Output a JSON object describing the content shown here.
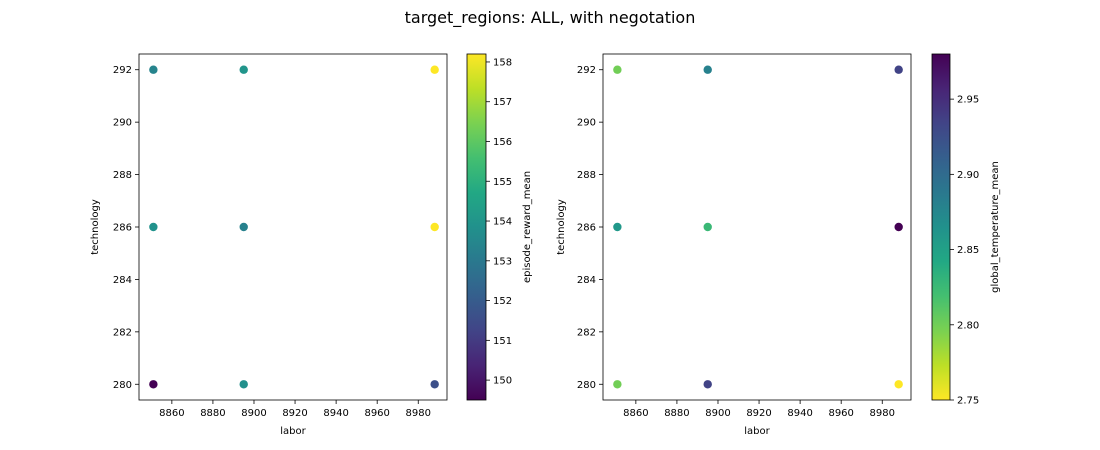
{
  "title": "target_regions: ALL, with negotation",
  "chart_data": [
    {
      "type": "scatter",
      "xlabel": "labor",
      "ylabel": "technology",
      "xlim": [
        8844,
        8994
      ],
      "ylim": [
        279.4,
        292.6
      ],
      "xticks": [
        8860,
        8880,
        8900,
        8920,
        8940,
        8960,
        8980
      ],
      "yticks": [
        280,
        282,
        284,
        286,
        288,
        290,
        292
      ],
      "colormap": "viridis",
      "colorbar": {
        "label": "episode_reward_mean",
        "range": [
          149.5,
          158.2
        ],
        "ticks": [
          150,
          151,
          152,
          153,
          154,
          155,
          156,
          157,
          158
        ]
      },
      "points": [
        {
          "x": 8851,
          "y": 292,
          "c": 153.4
        },
        {
          "x": 8851,
          "y": 286,
          "c": 153.9
        },
        {
          "x": 8851,
          "y": 280,
          "c": 149.5
        },
        {
          "x": 8895,
          "y": 292,
          "c": 154.0
        },
        {
          "x": 8895,
          "y": 286,
          "c": 153.3
        },
        {
          "x": 8895,
          "y": 280,
          "c": 153.8
        },
        {
          "x": 8988,
          "y": 292,
          "c": 158.2
        },
        {
          "x": 8988,
          "y": 286,
          "c": 158.2
        },
        {
          "x": 8988,
          "y": 280,
          "c": 151.6
        }
      ]
    },
    {
      "type": "scatter",
      "xlabel": "labor",
      "ylabel": "technology",
      "xlim": [
        8844,
        8994
      ],
      "ylim": [
        279.4,
        292.6
      ],
      "xticks": [
        8860,
        8880,
        8900,
        8920,
        8940,
        8960,
        8980
      ],
      "yticks": [
        280,
        282,
        284,
        286,
        288,
        290,
        292
      ],
      "colormap": "viridis_r",
      "colorbar": {
        "label": "global_temperature_mean",
        "range": [
          2.75,
          2.98
        ],
        "ticks": [
          2.75,
          2.8,
          2.85,
          2.9,
          2.95
        ],
        "tick_labels": [
          "2.75",
          "2.80",
          "2.85",
          "2.90",
          "2.95"
        ]
      },
      "points": [
        {
          "x": 8851,
          "y": 292,
          "c": 2.8
        },
        {
          "x": 8851,
          "y": 286,
          "c": 2.858
        },
        {
          "x": 8851,
          "y": 280,
          "c": 2.8
        },
        {
          "x": 8895,
          "y": 292,
          "c": 2.88
        },
        {
          "x": 8895,
          "y": 286,
          "c": 2.826
        },
        {
          "x": 8895,
          "y": 280,
          "c": 2.935
        },
        {
          "x": 8988,
          "y": 292,
          "c": 2.935
        },
        {
          "x": 8988,
          "y": 286,
          "c": 2.98
        },
        {
          "x": 8988,
          "y": 280,
          "c": 2.75
        }
      ]
    }
  ]
}
